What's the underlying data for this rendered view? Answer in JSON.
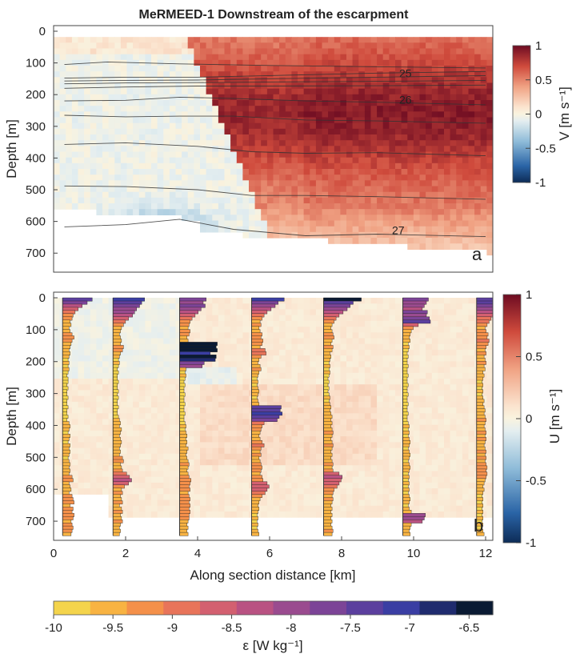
{
  "chart_data": [
    {
      "panel": "a",
      "type": "heatmap",
      "title": "MeRMEED-1 Downstream of the escarpment",
      "xlabel": "",
      "ylabel": "Depth [m]",
      "xlim": [
        0,
        12.2
      ],
      "ylim": [
        0,
        760
      ],
      "y_reversed": true,
      "yticks": [
        0,
        100,
        200,
        300,
        400,
        500,
        600,
        700
      ],
      "colorbar": {
        "label": "V [m s⁻¹]",
        "min": -1,
        "max": 1,
        "ticks": [
          "1",
          "0.5",
          "0",
          "-0.5",
          "-1"
        ]
      },
      "panel_label": "a",
      "contours": [
        {
          "label": "",
          "points": [
            [
              0.3,
              105
            ],
            [
              1.5,
              97
            ],
            [
              3.5,
              103
            ],
            [
              6,
              108
            ],
            [
              9,
              112
            ],
            [
              12,
              116
            ]
          ]
        },
        {
          "label": "25",
          "points": [
            [
              0.3,
              148
            ],
            [
              2,
              145
            ],
            [
              4,
              145
            ],
            [
              6,
              140
            ],
            [
              9,
              132
            ],
            [
              12,
              127
            ]
          ]
        },
        {
          "label": "",
          "points": [
            [
              0.3,
              157
            ],
            [
              2,
              155
            ],
            [
              4,
              154
            ],
            [
              6,
              150
            ],
            [
              9,
              145
            ],
            [
              12,
              140
            ]
          ]
        },
        {
          "label": "",
          "points": [
            [
              0.3,
              166
            ],
            [
              2,
              163
            ],
            [
              4,
              162
            ],
            [
              6,
              160
            ],
            [
              9,
              158
            ],
            [
              12,
              155
            ]
          ]
        },
        {
          "label": "",
          "points": [
            [
              0.3,
              180
            ],
            [
              2,
              176
            ],
            [
              4,
              173
            ],
            [
              6,
              173
            ],
            [
              9,
              172
            ],
            [
              12,
              170
            ]
          ]
        },
        {
          "label": "26",
          "points": [
            [
              0.3,
              220
            ],
            [
              2,
              218
            ],
            [
              3.5,
              208
            ],
            [
              5,
              212
            ],
            [
              7,
              220
            ],
            [
              9,
              224
            ],
            [
              12,
              232
            ]
          ]
        },
        {
          "label": "",
          "points": [
            [
              0.3,
              265
            ],
            [
              2,
              270
            ],
            [
              3.5,
              268
            ],
            [
              5,
              268
            ],
            [
              7,
              280
            ],
            [
              9,
              283
            ],
            [
              12,
              290
            ]
          ]
        },
        {
          "label": "",
          "points": [
            [
              0.3,
              357
            ],
            [
              2,
              352
            ],
            [
              4,
              363
            ],
            [
              5.5,
              380
            ],
            [
              7,
              385
            ],
            [
              9,
              383
            ],
            [
              12,
              393
            ]
          ]
        },
        {
          "label": "",
          "points": [
            [
              0.3,
              488
            ],
            [
              2,
              490
            ],
            [
              4,
              500
            ],
            [
              5.5,
              518
            ],
            [
              7,
              518
            ],
            [
              9,
              522
            ],
            [
              12,
              530
            ]
          ]
        },
        {
          "label": "27",
          "points": [
            [
              0.3,
              617
            ],
            [
              2,
              610
            ],
            [
              3.5,
              593
            ],
            [
              5,
              625
            ],
            [
              7,
              645
            ],
            [
              9,
              640
            ],
            [
              12,
              648
            ]
          ]
        }
      ]
    },
    {
      "panel": "b",
      "type": "heatmap",
      "title": "",
      "xlabel": "Along section distance [km]",
      "ylabel": "Depth [m]",
      "xlim": [
        0,
        12.2
      ],
      "ylim": [
        0,
        760
      ],
      "y_reversed": true,
      "xticks": [
        0,
        2,
        4,
        6,
        8,
        10,
        12
      ],
      "yticks": [
        0,
        100,
        200,
        300,
        400,
        500,
        600,
        700
      ],
      "colorbar": {
        "label": "U [m s⁻¹]",
        "min": -1,
        "max": 1,
        "ticks": [
          "1",
          "0.5",
          "0",
          "-0.5",
          "-1"
        ]
      },
      "panel_label": "b",
      "profile_stations_km": [
        0.25,
        1.65,
        3.5,
        5.5,
        7.5,
        9.7,
        11.75
      ],
      "epsilon_profiles": [
        {
          "station_km": 0.25,
          "log10_epsilon": [
            -7.3,
            -7.8,
            -8.3,
            -8.7,
            -9.0,
            -9.2,
            -9.3,
            -9.5,
            -9.4,
            -9.6,
            -9.5,
            -9.3,
            -9.1,
            -9.3,
            -9.4,
            -9.5,
            -9.6,
            -9.5,
            -9.6,
            -9.7,
            -9.6,
            -9.7,
            -9.6,
            -9.7,
            -9.8,
            -9.7,
            -9.7,
            -9.8,
            -9.7,
            -9.8,
            -9.8,
            -9.7,
            -9.8,
            -9.8,
            -9.7,
            -9.8,
            -9.8,
            -9.7,
            -9.8,
            -9.6,
            -9.5,
            -9.6,
            -9.7,
            -9.5,
            -9.6,
            -9.7,
            -9.5,
            -9.6,
            -9.5,
            -9.6,
            -9.7,
            -9.6,
            -9.5,
            -9.6,
            -9.5,
            -9.6,
            -9.3,
            -9.2,
            -9.6,
            -9.5,
            -9.4,
            -9.6,
            -9.3,
            -9.2,
            -9.1,
            -9.5,
            -9.2,
            -9.3,
            -9.1,
            -9.2,
            -9.4,
            -9.3,
            -9.2,
            -9.3,
            -9.4
          ]
        },
        {
          "station_km": 1.65,
          "log10_epsilon": [
            -7.1,
            -7.4,
            -7.6,
            -7.9,
            -8.1,
            -8.3,
            -8.7,
            -9.0,
            -9.2,
            -9.4,
            -9.5,
            -9.6,
            -9.5,
            -9.4,
            -9.5,
            -9.2,
            -9.3,
            -9.5,
            -9.6,
            -9.7,
            -9.6,
            -9.7,
            -9.8,
            -9.7,
            -9.8,
            -9.8,
            -9.7,
            -9.8,
            -9.8,
            -9.7,
            -9.8,
            -9.7,
            -9.8,
            -9.8,
            -9.7,
            -9.8,
            -9.8,
            -9.7,
            -9.6,
            -9.5,
            -9.6,
            -9.4,
            -9.5,
            -9.6,
            -9.5,
            -9.4,
            -9.5,
            -9.6,
            -9.5,
            -9.6,
            -9.3,
            -9.2,
            -9.5,
            -9.4,
            -9.3,
            -8.9,
            -8.6,
            -8.4,
            -8.7,
            -9.1,
            -9.4,
            -9.3,
            -9.5,
            -9.4,
            -9.3,
            -9.6,
            -9.4,
            -9.3,
            -9.5,
            -9.4,
            -9.3,
            -9.5,
            -9.6,
            -9.5,
            -9.6
          ]
        },
        {
          "station_km": 3.5,
          "log10_epsilon": [
            -7.6,
            -7.9,
            -7.7,
            -8.1,
            -8.4,
            -8.7,
            -9.0,
            -9.2,
            -9.3,
            -9.4,
            -9.2,
            -9.3,
            -9.5,
            -9.4,
            -6.5,
            -6.6,
            -6.5,
            -7.2,
            -6.6,
            -6.7,
            -7.8,
            -8.0,
            -9.6,
            -9.7,
            -9.6,
            -9.7,
            -9.8,
            -9.7,
            -9.8,
            -9.8,
            -9.7,
            -9.8,
            -9.8,
            -9.7,
            -9.8,
            -9.8,
            -9.7,
            -9.8,
            -9.8,
            -9.7,
            -9.6,
            -9.7,
            -9.6,
            -9.5,
            -9.6,
            -9.5,
            -9.6,
            -9.4,
            -9.5,
            -9.6,
            -9.5,
            -9.4,
            -9.3,
            -9.4,
            -9.5,
            -9.4,
            -9.3,
            -9.1,
            -9.2,
            -9.3,
            -9.2,
            -9.4,
            -9.3,
            -9.2,
            -9.3,
            -9.2,
            -9.3,
            -9.2,
            -9.3,
            -9.3,
            -9.4,
            -9.5,
            -9.4,
            -9.5,
            -9.4
          ]
        },
        {
          "station_km": 5.5,
          "log10_epsilon": [
            -7.0,
            -7.6,
            -7.9,
            -8.3,
            -8.7,
            -9.0,
            -9.2,
            -9.4,
            -9.3,
            -9.5,
            -9.4,
            -9.2,
            -9.3,
            -9.1,
            -9.2,
            -9.4,
            -8.9,
            -8.8,
            -9.3,
            -9.5,
            -9.6,
            -9.4,
            -9.3,
            -9.5,
            -9.6,
            -9.7,
            -9.6,
            -9.7,
            -9.6,
            -9.5,
            -9.6,
            -9.7,
            -9.6,
            -9.5,
            -7.3,
            -7.4,
            -7.2,
            -7.5,
            -7.7,
            -9.0,
            -9.2,
            -9.3,
            -9.4,
            -9.5,
            -9.4,
            -9.2,
            -9.0,
            -9.3,
            -9.4,
            -9.3,
            -9.5,
            -9.4,
            -9.3,
            -9.2,
            -9.3,
            -9.4,
            -9.2,
            -9.1,
            -8.7,
            -8.5,
            -8.7,
            -8.9,
            -9.2,
            -9.4,
            -9.5,
            -9.6,
            -9.5,
            -9.6,
            -9.7,
            -9.6,
            -9.7,
            -9.6,
            -9.7,
            -9.6,
            -9.5
          ]
        },
        {
          "station_km": 7.5,
          "log10_epsilon": [
            -6.5,
            -7.3,
            -7.6,
            -7.9,
            -8.3,
            -8.7,
            -9.0,
            -9.2,
            -9.4,
            -9.5,
            -9.4,
            -9.3,
            -9.2,
            -9.4,
            -9.5,
            -9.3,
            -9.4,
            -9.6,
            -9.5,
            -9.6,
            -9.7,
            -9.6,
            -9.7,
            -9.6,
            -9.7,
            -9.8,
            -9.7,
            -9.8,
            -9.7,
            -9.8,
            -9.7,
            -9.6,
            -9.7,
            -9.6,
            -9.5,
            -9.6,
            -9.5,
            -9.4,
            -9.5,
            -9.4,
            -9.5,
            -9.4,
            -9.3,
            -9.4,
            -9.5,
            -9.4,
            -9.3,
            -9.4,
            -9.5,
            -9.4,
            -9.5,
            -9.4,
            -9.3,
            -9.4,
            -9.3,
            -8.7,
            -8.4,
            -8.5,
            -8.7,
            -8.9,
            -9.2,
            -9.3,
            -9.4,
            -9.3,
            -9.4,
            -9.5,
            -9.4,
            -9.5,
            -9.4,
            -9.5,
            -9.4,
            -9.5,
            -9.4,
            -9.3,
            -9.4
          ]
        },
        {
          "station_km": 9.7,
          "log10_epsilon": [
            -7.7,
            -7.9,
            -8.1,
            -8.3,
            -7.8,
            -7.9,
            -7.6,
            -7.5,
            -8.7,
            -9.2,
            -9.4,
            -9.5,
            -9.6,
            -9.5,
            -9.7,
            -9.6,
            -9.7,
            -9.8,
            -9.7,
            -9.8,
            -9.8,
            -9.7,
            -9.8,
            -9.8,
            -9.7,
            -9.8,
            -9.8,
            -9.7,
            -9.8,
            -9.8,
            -9.7,
            -9.8,
            -9.8,
            -9.7,
            -9.8,
            -9.8,
            -9.7,
            -9.8,
            -9.8,
            -9.7,
            -9.6,
            -9.7,
            -9.6,
            -9.7,
            -9.6,
            -9.5,
            -9.6,
            -9.7,
            -9.6,
            -9.5,
            -9.6,
            -9.7,
            -9.6,
            -9.5,
            -9.6,
            -9.7,
            -9.6,
            -9.7,
            -9.6,
            -9.7,
            -9.6,
            -9.7,
            -9.6,
            -9.5,
            -9.6,
            -9.7,
            -9.6,
            -9.4,
            -8.0,
            -8.1,
            -8.3,
            -9.4,
            -9.5,
            -9.6,
            -9.5
          ]
        },
        {
          "station_km": 11.75,
          "log10_epsilon": [
            -7.4,
            -7.5,
            -7.8,
            -8.0,
            -8.3,
            -8.5,
            -8.8,
            -9.0,
            -9.2,
            -9.4,
            -9.3,
            -9.1,
            -9.2,
            -9.0,
            -9.1,
            -9.3,
            -9.4,
            -9.3,
            -9.5,
            -9.4,
            -9.3,
            -9.5,
            -9.4,
            -9.6,
            -9.5,
            -9.6,
            -9.7,
            -9.6,
            -9.7,
            -9.6,
            -9.7,
            -9.6,
            -9.5,
            -9.6,
            -9.5,
            -9.4,
            -9.5,
            -9.4,
            -9.3,
            -9.4,
            -9.5,
            -9.4,
            -9.3,
            -9.4,
            -9.3,
            -9.4,
            -9.5,
            -9.4,
            -9.3,
            -9.4,
            -9.3,
            -9.4,
            -9.3,
            -9.2,
            -9.3,
            -9.2,
            -9.3,
            -9.4,
            -9.5,
            -9.6,
            -9.5,
            -9.6,
            -9.7,
            -9.6,
            -9.7,
            -9.6,
            -9.7,
            -9.6,
            -9.7,
            -9.6,
            -9.7,
            -9.6,
            -9.7,
            -9.6,
            -9.5
          ]
        }
      ]
    },
    {
      "panel": "epsilon-colorbar",
      "type": "colorbar",
      "label": "ε [W kg⁻¹]",
      "min": -10,
      "max": -6.3,
      "ticks": [
        "-10",
        "-9.5",
        "-9",
        "-8.5",
        "-8",
        "-7.5",
        "-7",
        "-6.5"
      ],
      "colors": [
        "#f4d44c",
        "#f8b342",
        "#f4904a",
        "#e8745a",
        "#d36070",
        "#b95282",
        "#9a4b8f",
        "#7c4497",
        "#5b3f9e",
        "#3a3ea3",
        "#1f2b6e",
        "#0a1a33"
      ]
    }
  ]
}
